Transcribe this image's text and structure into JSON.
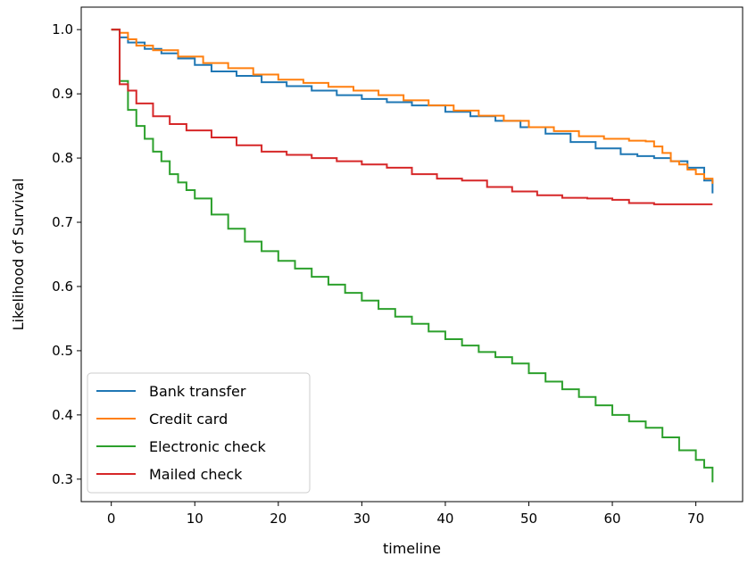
{
  "chart_data": {
    "type": "line",
    "step": true,
    "title": "",
    "xlabel": "timeline",
    "ylabel": "Likelihood of Survival",
    "xlim": [
      -3.6,
      75.6
    ],
    "ylim": [
      0.265,
      1.035
    ],
    "xticks": [
      0,
      10,
      20,
      30,
      40,
      50,
      60,
      70
    ],
    "yticks": [
      0.3,
      0.4,
      0.5,
      0.6,
      0.7,
      0.8,
      0.9,
      1.0
    ],
    "xtick_labels": [
      "0",
      "10",
      "20",
      "30",
      "40",
      "50",
      "60",
      "70"
    ],
    "ytick_labels": [
      "0.3",
      "0.4",
      "0.5",
      "0.6",
      "0.7",
      "0.8",
      "0.9",
      "1.0"
    ],
    "grid": false,
    "legend_position": "lower-left",
    "series": [
      {
        "name": "Bank transfer",
        "color": "#1f77b4",
        "x": [
          0,
          1,
          2,
          4,
          6,
          8,
          10,
          12,
          15,
          18,
          21,
          24,
          27,
          30,
          33,
          36,
          40,
          43,
          46,
          49,
          52,
          55,
          58,
          61,
          63,
          65,
          67,
          69,
          71,
          72
        ],
        "y": [
          1.0,
          0.988,
          0.98,
          0.97,
          0.963,
          0.955,
          0.945,
          0.935,
          0.928,
          0.918,
          0.912,
          0.905,
          0.898,
          0.892,
          0.887,
          0.882,
          0.872,
          0.865,
          0.858,
          0.848,
          0.838,
          0.825,
          0.815,
          0.806,
          0.803,
          0.8,
          0.795,
          0.785,
          0.765,
          0.745
        ]
      },
      {
        "name": "Credit card",
        "color": "#ff7f0e",
        "x": [
          0,
          1,
          2,
          3,
          5,
          8,
          11,
          14,
          17,
          20,
          23,
          26,
          29,
          32,
          35,
          38,
          41,
          44,
          47,
          50,
          53,
          56,
          59,
          62,
          64,
          65,
          66,
          67,
          68,
          69,
          70,
          71,
          72
        ],
        "y": [
          1.0,
          0.995,
          0.985,
          0.975,
          0.968,
          0.958,
          0.948,
          0.94,
          0.93,
          0.922,
          0.917,
          0.911,
          0.905,
          0.898,
          0.89,
          0.882,
          0.874,
          0.866,
          0.858,
          0.848,
          0.842,
          0.834,
          0.83,
          0.827,
          0.826,
          0.818,
          0.808,
          0.795,
          0.79,
          0.782,
          0.775,
          0.768,
          0.76
        ]
      },
      {
        "name": "Electronic check",
        "color": "#2ca02c",
        "x": [
          0,
          1,
          2,
          3,
          4,
          5,
          6,
          7,
          8,
          9,
          10,
          12,
          14,
          16,
          18,
          20,
          22,
          24,
          26,
          28,
          30,
          32,
          34,
          36,
          38,
          40,
          42,
          44,
          46,
          48,
          50,
          52,
          54,
          56,
          58,
          60,
          62,
          64,
          66,
          68,
          70,
          71,
          72
        ],
        "y": [
          1.0,
          0.92,
          0.875,
          0.85,
          0.83,
          0.81,
          0.795,
          0.775,
          0.762,
          0.75,
          0.737,
          0.712,
          0.69,
          0.67,
          0.655,
          0.64,
          0.628,
          0.615,
          0.603,
          0.59,
          0.578,
          0.565,
          0.553,
          0.542,
          0.53,
          0.518,
          0.508,
          0.498,
          0.49,
          0.48,
          0.465,
          0.452,
          0.44,
          0.428,
          0.415,
          0.4,
          0.39,
          0.38,
          0.365,
          0.345,
          0.33,
          0.318,
          0.295
        ]
      },
      {
        "name": "Mailed check",
        "color": "#d62728",
        "x": [
          0,
          1,
          2,
          3,
          5,
          7,
          9,
          12,
          15,
          18,
          21,
          24,
          27,
          30,
          33,
          36,
          39,
          42,
          45,
          48,
          51,
          54,
          57,
          60,
          62,
          65,
          68,
          72
        ],
        "y": [
          1.0,
          0.915,
          0.905,
          0.885,
          0.865,
          0.853,
          0.843,
          0.832,
          0.82,
          0.81,
          0.805,
          0.8,
          0.795,
          0.79,
          0.785,
          0.775,
          0.768,
          0.765,
          0.755,
          0.748,
          0.742,
          0.738,
          0.737,
          0.735,
          0.73,
          0.728,
          0.728,
          0.728
        ]
      }
    ]
  }
}
